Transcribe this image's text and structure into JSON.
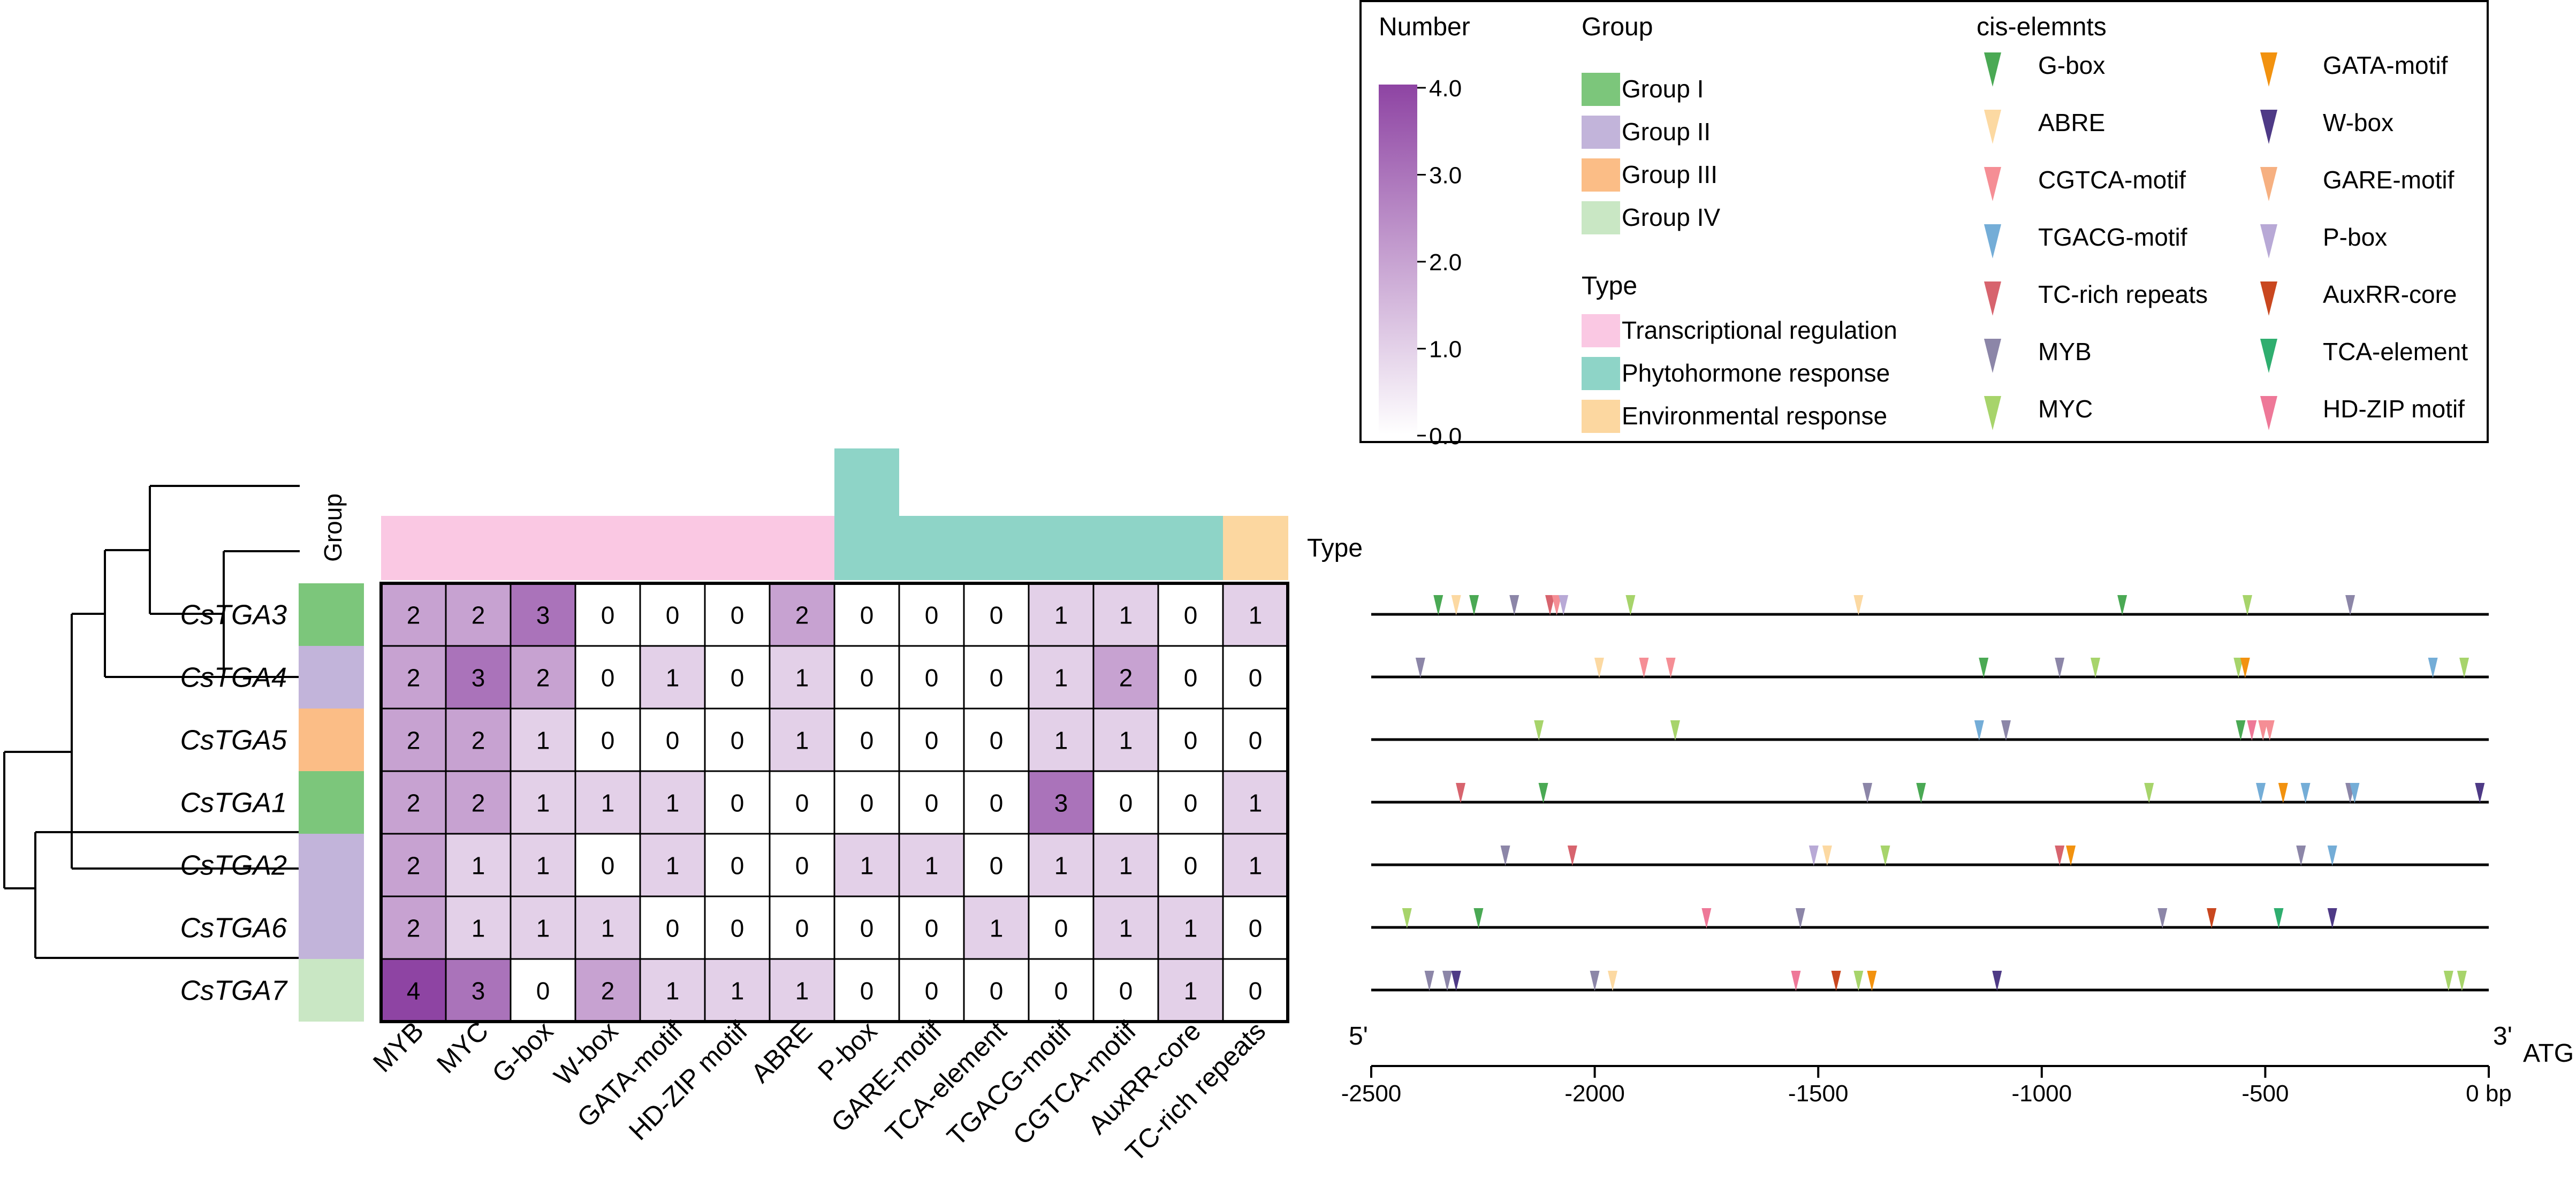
{
  "legend": {
    "number_title": "Number",
    "number_ticks": [
      "4.0",
      "3.0",
      "2.0",
      "1.0",
      "0.0"
    ],
    "group_title": "Group",
    "groups": [
      {
        "label": "Group I",
        "color": "#7cc67b"
      },
      {
        "label": "Group II",
        "color": "#c2b4da"
      },
      {
        "label": "Group III",
        "color": "#fbbd86"
      },
      {
        "label": "Group IV",
        "color": "#c9e7c4"
      }
    ],
    "type_title": "Type",
    "types": [
      {
        "label": "Transcriptional regulation",
        "color": "#fac8e3"
      },
      {
        "label": "Phytohormone response",
        "color": "#8ed4c7"
      },
      {
        "label": "Environmental response",
        "color": "#fcd7a0"
      }
    ],
    "cis_title": "cis-elemnts",
    "cis": [
      {
        "label": "G-box",
        "color": "#4aa954"
      },
      {
        "label": "ABRE",
        "color": "#fcd9a2"
      },
      {
        "label": "CGTCA-motif",
        "color": "#f58e95"
      },
      {
        "label": "TGACG-motif",
        "color": "#74add7"
      },
      {
        "label": "TC-rich repeats",
        "color": "#d7646e"
      },
      {
        "label": "MYB",
        "color": "#8c86a8"
      },
      {
        "label": "MYC",
        "color": "#a7d46b"
      },
      {
        "label": "GATA-motif",
        "color": "#f2920f"
      },
      {
        "label": "W-box",
        "color": "#4e3a86"
      },
      {
        "label": "GARE-motif",
        "color": "#f6b081"
      },
      {
        "label": "P-box",
        "color": "#b8a9d6"
      },
      {
        "label": "AuxRR-core",
        "color": "#c9471f"
      },
      {
        "label": "TCA-element",
        "color": "#2fae6f"
      },
      {
        "label": "HD-ZIP motif",
        "color": "#ee7898"
      }
    ]
  },
  "heatmap": {
    "group_label": "Group",
    "type_label": "Type",
    "genes": [
      "CsTGA3",
      "CsTGA4",
      "CsTGA5",
      "CsTGA1",
      "CsTGA2",
      "CsTGA6",
      "CsTGA7"
    ],
    "gene_groups": [
      0,
      1,
      2,
      0,
      1,
      1,
      3
    ],
    "columns": [
      "MYB",
      "MYC",
      "G-box",
      "W-box",
      "GATA-motif",
      "HD-ZIP motif",
      "ABRE",
      "P-box",
      "GARE-motif",
      "TCA-element",
      "TGACG-motif",
      "CGTCA-motif",
      "AuxRR-core",
      "TC-rich repeats"
    ],
    "column_types": [
      0,
      0,
      0,
      0,
      0,
      0,
      0,
      1,
      1,
      1,
      1,
      1,
      1,
      2
    ],
    "extra_type_marker_column": 6,
    "values": [
      [
        2,
        2,
        3,
        0,
        0,
        0,
        2,
        0,
        0,
        0,
        1,
        1,
        0,
        1
      ],
      [
        2,
        3,
        2,
        0,
        1,
        0,
        1,
        0,
        0,
        0,
        1,
        2,
        0,
        0
      ],
      [
        2,
        2,
        1,
        0,
        0,
        0,
        1,
        0,
        0,
        0,
        1,
        1,
        0,
        0
      ],
      [
        2,
        2,
        1,
        1,
        1,
        0,
        0,
        0,
        0,
        0,
        3,
        0,
        0,
        1
      ],
      [
        2,
        1,
        1,
        0,
        1,
        0,
        0,
        1,
        1,
        0,
        1,
        1,
        0,
        1
      ],
      [
        2,
        1,
        1,
        1,
        0,
        0,
        0,
        0,
        0,
        1,
        0,
        1,
        1,
        0
      ],
      [
        4,
        3,
        0,
        2,
        1,
        1,
        1,
        0,
        0,
        0,
        0,
        0,
        1,
        0
      ]
    ],
    "color_min": "#ffffff",
    "color_max": "#8e44a3"
  },
  "chart_data": {
    "type": "heatmap",
    "title": "",
    "xlabel": "",
    "ylabel": "",
    "color_scale": "Number",
    "ylim": [
      0,
      4
    ],
    "promoter_axis": {
      "xlim": [
        -2500,
        0
      ],
      "ticks": [
        "-2500",
        "-2000",
        "-1500",
        "-1000",
        "-500",
        "0 bp"
      ],
      "left_label": "5'",
      "right_label": "3'",
      "end_label": "ATG"
    },
    "elements": [
      [
        [
          -2350,
          "G-box"
        ],
        [
          -2310,
          "ABRE"
        ],
        [
          -2270,
          "G-box"
        ],
        [
          -2180,
          "MYB"
        ],
        [
          -2100,
          "TC-rich repeats"
        ],
        [
          -2085,
          "CGTCA-motif"
        ],
        [
          -2070,
          "P-box"
        ],
        [
          -1920,
          "MYC"
        ],
        [
          -1410,
          "ABRE"
        ],
        [
          -820,
          "G-box"
        ],
        [
          -540,
          "MYC"
        ],
        [
          -310,
          "MYB"
        ]
      ],
      [
        [
          -2390,
          "MYB"
        ],
        [
          -1990,
          "ABRE"
        ],
        [
          -1890,
          "CGTCA-motif"
        ],
        [
          -1830,
          "CGTCA-motif"
        ],
        [
          -1130,
          "G-box"
        ],
        [
          -960,
          "MYB"
        ],
        [
          -880,
          "MYC"
        ],
        [
          -560,
          "MYC"
        ],
        [
          -545,
          "GATA-motif"
        ],
        [
          -125,
          "TGACG-motif"
        ],
        [
          -55,
          "MYC"
        ]
      ],
      [
        [
          -2125,
          "MYC"
        ],
        [
          -1820,
          "MYC"
        ],
        [
          -1140,
          "TGACG-motif"
        ],
        [
          -1080,
          "MYB"
        ],
        [
          -555,
          "G-box"
        ],
        [
          -530,
          "HD-ZIP motif"
        ],
        [
          -505,
          "CGTCA-motif"
        ],
        [
          -490,
          "CGTCA-motif"
        ]
      ],
      [
        [
          -2300,
          "TC-rich repeats"
        ],
        [
          -2115,
          "G-box"
        ],
        [
          -1390,
          "MYB"
        ],
        [
          -1270,
          "G-box"
        ],
        [
          -760,
          "MYC"
        ],
        [
          -510,
          "TGACG-motif"
        ],
        [
          -460,
          "GATA-motif"
        ],
        [
          -410,
          "TGACG-motif"
        ],
        [
          -310,
          "MYB"
        ],
        [
          -300,
          "TGACG-motif"
        ],
        [
          -20,
          "W-box"
        ]
      ],
      [
        [
          -2200,
          "MYB"
        ],
        [
          -2050,
          "TC-rich repeats"
        ],
        [
          -1510,
          "P-box"
        ],
        [
          -1480,
          "ABRE"
        ],
        [
          -1350,
          "MYC"
        ],
        [
          -960,
          "TC-rich repeats"
        ],
        [
          -935,
          "GATA-motif"
        ],
        [
          -420,
          "MYB"
        ],
        [
          -350,
          "TGACG-motif"
        ]
      ],
      [
        [
          -2420,
          "MYC"
        ],
        [
          -2260,
          "G-box"
        ],
        [
          -1750,
          "HD-ZIP motif"
        ],
        [
          -1540,
          "MYB"
        ],
        [
          -730,
          "MYB"
        ],
        [
          -620,
          "AuxRR-core"
        ],
        [
          -470,
          "TCA-element"
        ],
        [
          -350,
          "W-box"
        ]
      ],
      [
        [
          -2370,
          "MYB"
        ],
        [
          -2330,
          "MYB"
        ],
        [
          -2310,
          "W-box"
        ],
        [
          -2000,
          "MYB"
        ],
        [
          -1960,
          "ABRE"
        ],
        [
          -1550,
          "HD-ZIP motif"
        ],
        [
          -1460,
          "AuxRR-core"
        ],
        [
          -1410,
          "MYC"
        ],
        [
          -1380,
          "GATA-motif"
        ],
        [
          -1100,
          "W-box"
        ],
        [
          -90,
          "MYC"
        ],
        [
          -60,
          "MYC"
        ]
      ]
    ]
  }
}
